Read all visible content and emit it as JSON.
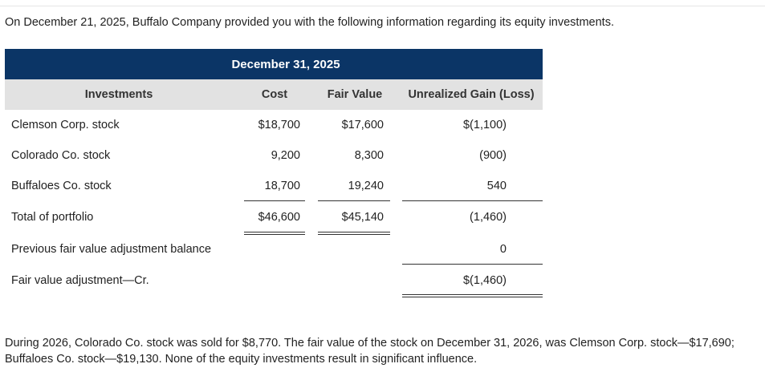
{
  "intro": "On December 21, 2025, Buffalo Company provided you with the following information regarding its equity investments.",
  "table": {
    "title": "December 31, 2025",
    "headers": {
      "investments": "Investments",
      "cost": "Cost",
      "fair_value": "Fair Value",
      "unrealized": "Unrealized Gain (Loss)"
    },
    "rows": [
      {
        "label": "Clemson Corp. stock",
        "cost": "$18,700",
        "fair_value": "$17,600",
        "unrealized": "$(1,100)"
      },
      {
        "label": "Colorado Co. stock",
        "cost": "9,200",
        "fair_value": "8,300",
        "unrealized": "(900)"
      },
      {
        "label": "Buffaloes Co. stock",
        "cost": "18,700",
        "fair_value": "19,240",
        "unrealized": "540"
      },
      {
        "label": "Total of portfolio",
        "cost": "$46,600",
        "fair_value": "$45,140",
        "unrealized": "(1,460)"
      },
      {
        "label": "Previous fair value adjustment balance",
        "cost": "",
        "fair_value": "",
        "unrealized": "0"
      },
      {
        "label": "Fair value adjustment—Cr.",
        "cost": "",
        "fair_value": "",
        "unrealized": "$(1,460)"
      }
    ]
  },
  "footnote": "During 2026, Colorado Co. stock was sold for $8,770. The fair value of the stock on December 31, 2026, was Clemson Corp. stock—$17,690; Buffaloes Co. stock—$19,130. None of the equity investments result in significant influence."
}
